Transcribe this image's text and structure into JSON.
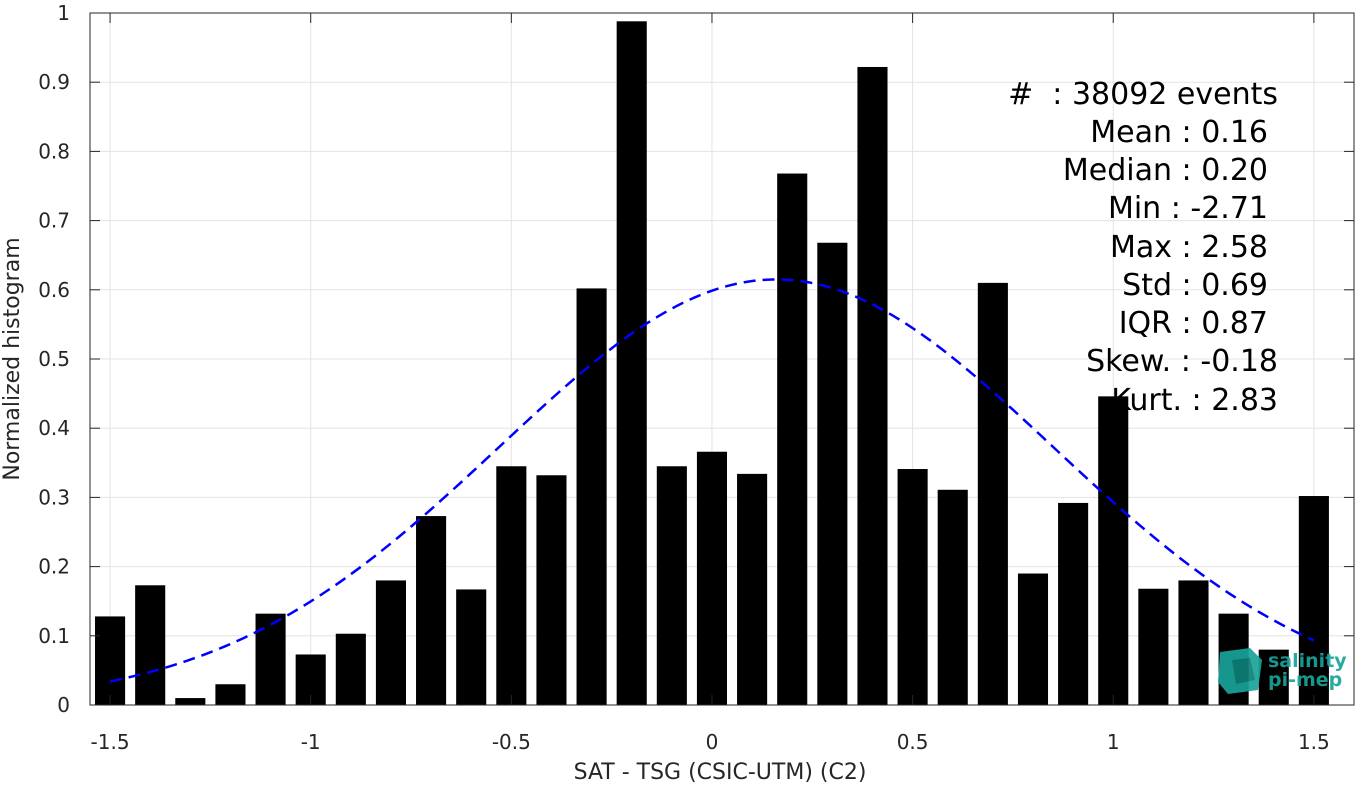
{
  "chart_data": {
    "type": "bar",
    "xlabel": "SAT - TSG (CSIC-UTM) (C2)",
    "ylabel": "Normalized histogram",
    "xlim": [
      -1.55,
      1.6
    ],
    "ylim": [
      0,
      1
    ],
    "x_ticks": [
      -1.5,
      -1,
      -0.5,
      0,
      0.5,
      1,
      1.5
    ],
    "x_tick_labels": [
      "-1.5",
      "-1",
      "-0.5",
      "0",
      "0.5",
      "1",
      "1.5"
    ],
    "y_ticks": [
      0,
      0.1,
      0.2,
      0.3,
      0.4,
      0.5,
      0.6,
      0.7,
      0.8,
      0.9,
      1
    ],
    "y_tick_labels": [
      "0",
      "0.1",
      "0.2",
      "0.3",
      "0.4",
      "0.5",
      "0.6",
      "0.7",
      "0.8",
      "0.9",
      "1"
    ],
    "grid": true,
    "bar_color": "#000000",
    "bar_width": 0.075,
    "x": [
      -1.5,
      -1.4,
      -1.3,
      -1.2,
      -1.1,
      -1.0,
      -0.9,
      -0.8,
      -0.7,
      -0.6,
      -0.5,
      -0.4,
      -0.3,
      -0.2,
      -0.1,
      0.0,
      0.1,
      0.2,
      0.3,
      0.4,
      0.5,
      0.6,
      0.7,
      0.8,
      0.9,
      1.0,
      1.1,
      1.2,
      1.3,
      1.4,
      1.5
    ],
    "values": [
      0.128,
      0.173,
      0.01,
      0.03,
      0.132,
      0.073,
      0.103,
      0.18,
      0.273,
      0.167,
      0.345,
      0.332,
      0.602,
      0.988,
      0.345,
      0.366,
      0.334,
      0.768,
      0.668,
      0.922,
      0.341,
      0.311,
      0.61,
      0.19,
      0.292,
      0.446,
      0.168,
      0.18,
      0.132,
      0.08,
      0.302
    ],
    "fit_curve": {
      "style": "dashed",
      "color": "#0000ff",
      "mean": 0.16,
      "std": 0.69,
      "peak": 0.615,
      "x_range": [
        -1.5,
        1.5
      ]
    },
    "stats": {
      "events": "#  : 38092 events",
      "mean": "Mean : 0.16",
      "median": "Median : 0.20",
      "min": "Min : -2.71",
      "max": "Max : 2.58",
      "std": "Std : 0.69",
      "iqr": "IQR : 0.87",
      "skew": "Skew. : -0.18",
      "kurt": "Kurt. : 2.83"
    }
  },
  "logo": {
    "line1": "salinity",
    "line2": "pi-mep",
    "color": "#1aa39a"
  }
}
